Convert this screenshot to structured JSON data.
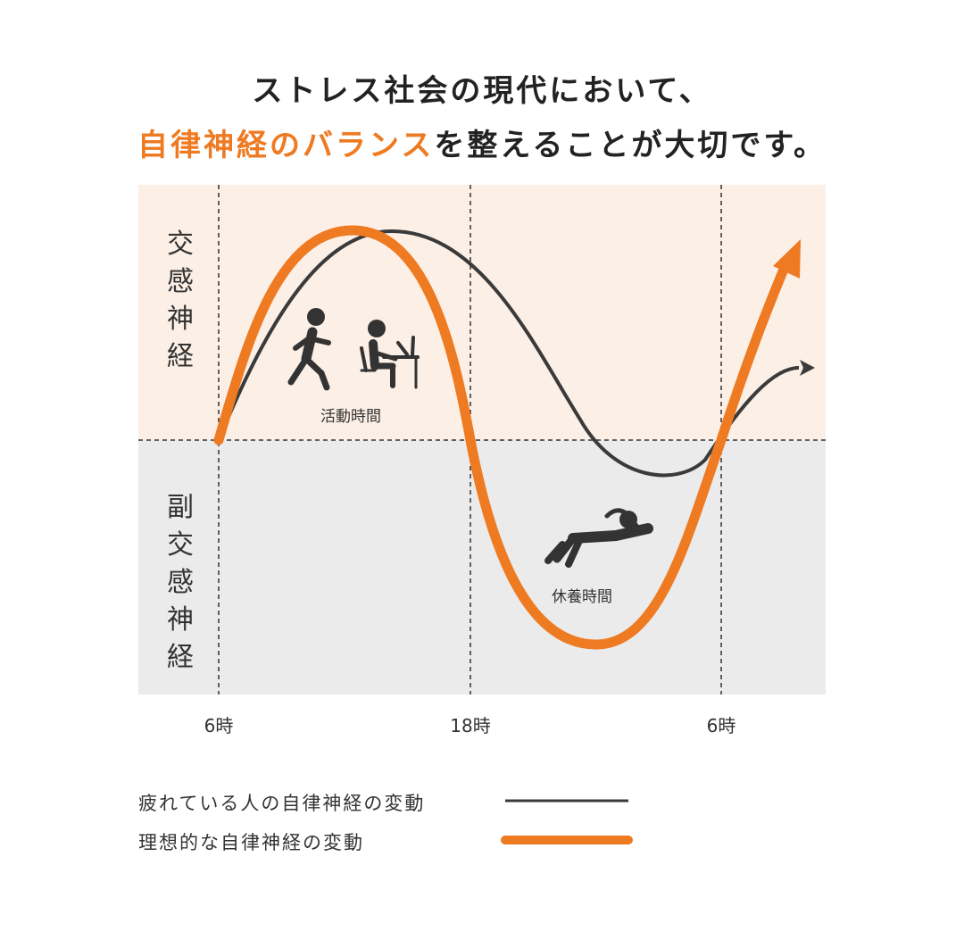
{
  "headline": {
    "line1": "ストレス社会の現代において、",
    "line2_highlight": "自律神経のバランス",
    "line2_rest": "を整えることが大切です。"
  },
  "zones": {
    "sympathetic": "交感神経",
    "parasympathetic": "副交感神経"
  },
  "annotations": {
    "active": "活動時間",
    "rest": "休養時間"
  },
  "icons": {
    "active": [
      "running-person-icon",
      "person-at-desk-icon"
    ],
    "rest": "reclining-person-icon"
  },
  "legend": {
    "tired": "疲れている人の自律神経の変動",
    "ideal": "理想的な自律神経の変動"
  },
  "colors": {
    "accent": "#ee7a22",
    "dark_curve": "#3a3a3a",
    "upper_band": "#fbefe6",
    "lower_band": "#ebebeb"
  },
  "chart_data": {
    "type": "line",
    "x_ticks": [
      "6時",
      "18時",
      "6時"
    ],
    "x_range": [
      6,
      36
    ],
    "ylim": [
      -1,
      1
    ],
    "series": [
      {
        "name": "疲れている人の自律神経の変動",
        "color": "#3a3a3a",
        "points": [
          [
            6,
            0
          ],
          [
            8,
            0.5
          ],
          [
            10,
            0.84
          ],
          [
            12,
            0.97
          ],
          [
            14,
            0.86
          ],
          [
            16,
            0.61
          ],
          [
            18,
            0.25
          ],
          [
            20,
            -0.06
          ],
          [
            22,
            -0.25
          ],
          [
            24,
            -0.31
          ],
          [
            26,
            -0.24
          ],
          [
            28,
            -0.12
          ],
          [
            30,
            0.02
          ],
          [
            32,
            0.18
          ],
          [
            34,
            0.27
          ]
        ]
      },
      {
        "name": "理想的な自律神経の変動",
        "color": "#ee7a22",
        "points": [
          [
            6,
            0
          ],
          [
            7,
            0.61
          ],
          [
            9,
            0.86
          ],
          [
            11,
            0.82
          ],
          [
            13,
            0.72
          ],
          [
            15,
            0.48
          ],
          [
            17,
            0.1
          ],
          [
            18,
            0.0
          ],
          [
            19,
            -0.35
          ],
          [
            21,
            -0.7
          ],
          [
            23,
            -0.8
          ],
          [
            25,
            -0.74
          ],
          [
            27,
            -0.41
          ],
          [
            29,
            -0.18
          ],
          [
            30,
            0.0
          ],
          [
            32,
            0.51
          ],
          [
            35,
            0.8
          ]
        ]
      }
    ]
  }
}
